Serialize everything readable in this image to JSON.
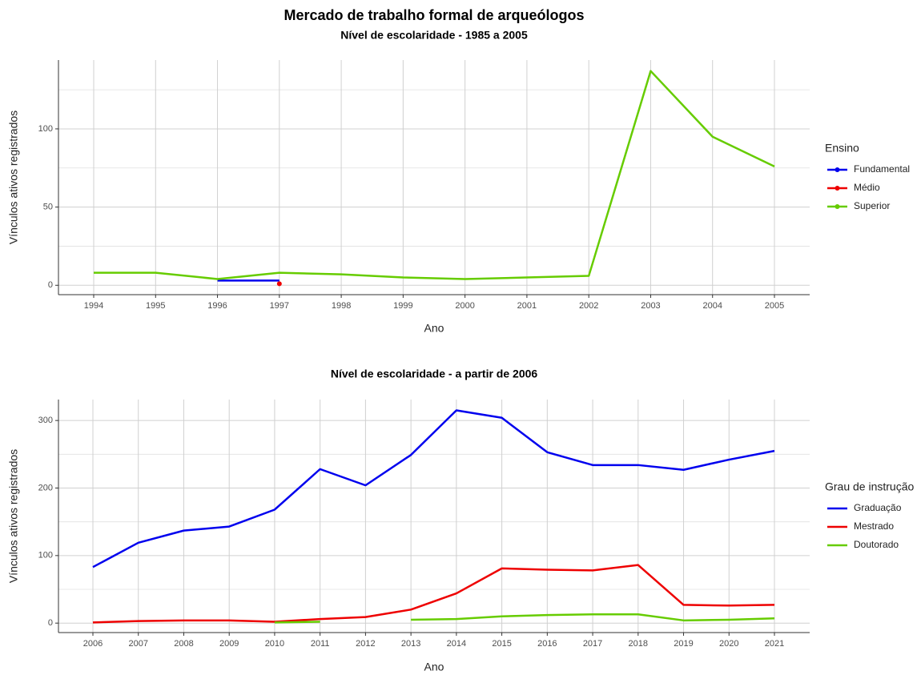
{
  "chart_data": [
    {
      "type": "line",
      "title": "Mercado de trabalho formal de arqueólogos",
      "subtitle": "Nível de escolaridade - 1985 a 2005",
      "x_label": "Ano",
      "y_label": "Vínculos ativos registrados",
      "legend_title": "Ensino",
      "legend_position": "right",
      "grid": true,
      "categories": [
        "1994",
        "1995",
        "1996",
        "1997",
        "1998",
        "1999",
        "2000",
        "2001",
        "2002",
        "2003",
        "2004",
        "2005"
      ],
      "series": [
        {
          "name": "Fundamental",
          "color": "#0000ee",
          "values": [
            null,
            null,
            3,
            3,
            null,
            null,
            null,
            null,
            null,
            null,
            null,
            null
          ]
        },
        {
          "name": "Médio",
          "color": "#ee0000",
          "values": [
            null,
            null,
            null,
            1,
            null,
            null,
            null,
            null,
            null,
            null,
            null,
            null
          ]
        },
        {
          "name": "Superior",
          "color": "#66cc00",
          "values": [
            8,
            8,
            4,
            8,
            7,
            5,
            4,
            5,
            6,
            137,
            95,
            76
          ]
        }
      ],
      "ylim": [
        -6,
        144
      ],
      "yticks": [
        0,
        50,
        100
      ],
      "yminor": [
        25,
        75,
        125
      ]
    },
    {
      "type": "line",
      "title": "Nível de escolaridade - a partir de 2006",
      "x_label": "Ano",
      "y_label": "Vínculos ativos registrados",
      "legend_title": "Grau de instrução",
      "legend_position": "right",
      "grid": true,
      "categories": [
        "2006",
        "2007",
        "2008",
        "2009",
        "2010",
        "2011",
        "2012",
        "2013",
        "2014",
        "2015",
        "2016",
        "2017",
        "2018",
        "2019",
        "2020",
        "2021"
      ],
      "series": [
        {
          "name": "Graduação",
          "color": "#0000ee",
          "values": [
            83,
            119,
            137,
            143,
            168,
            228,
            204,
            249,
            315,
            304,
            253,
            234,
            234,
            227,
            242,
            255
          ]
        },
        {
          "name": "Mestrado",
          "color": "#ee0000",
          "values": [
            1,
            3,
            4,
            4,
            2,
            6,
            9,
            20,
            44,
            81,
            79,
            78,
            86,
            27,
            26,
            27
          ]
        },
        {
          "name": "Doutorado",
          "color": "#66cc00",
          "values": [
            null,
            null,
            null,
            null,
            1,
            2,
            null,
            5,
            6,
            10,
            12,
            13,
            13,
            4,
            5,
            7
          ]
        }
      ],
      "ylim": [
        -14,
        331
      ],
      "yticks": [
        0,
        100,
        200,
        300
      ],
      "yminor": [
        50,
        150,
        250
      ]
    }
  ]
}
